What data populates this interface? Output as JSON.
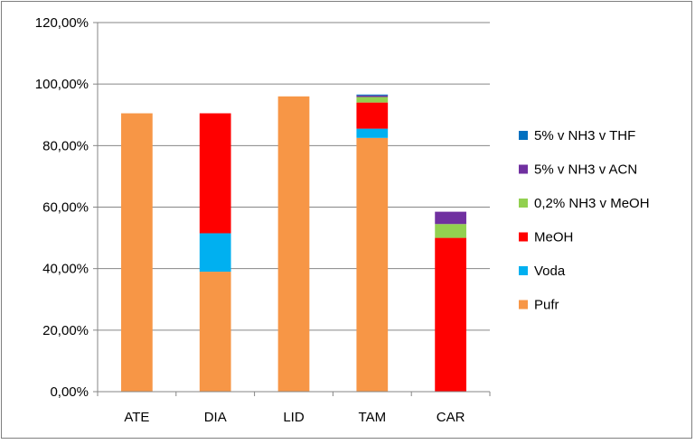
{
  "chart_data": {
    "type": "bar",
    "stacked": true,
    "categories": [
      "ATE",
      "DIA",
      "LID",
      "TAM",
      "CAR"
    ],
    "y_tick_labels": [
      "0,00%",
      "20,00%",
      "40,00%",
      "60,00%",
      "80,00%",
      "100,00%",
      "120,00%"
    ],
    "ylim": [
      0,
      120
    ],
    "grid": true,
    "legend_position": "right",
    "series": [
      {
        "name": "Pufr",
        "color": "#f79646",
        "values": [
          90.5,
          39,
          96,
          82.5,
          0
        ]
      },
      {
        "name": "Voda",
        "color": "#00b0f0",
        "values": [
          0,
          12.5,
          0,
          3,
          0
        ]
      },
      {
        "name": "MeOH",
        "color": "#ff0000",
        "values": [
          0,
          39,
          0,
          8.5,
          50
        ]
      },
      {
        "name": "0,2% NH3 v MeOH",
        "color": "#92d050",
        "values": [
          0,
          0,
          0,
          1.8,
          4.5
        ]
      },
      {
        "name": "5% v NH3 v ACN",
        "color": "#7030a0",
        "values": [
          0,
          0,
          0,
          0.5,
          4
        ]
      },
      {
        "name": "5% v NH3 v THF",
        "color": "#0070c0",
        "values": [
          0,
          0,
          0,
          0.3,
          0
        ]
      }
    ]
  }
}
